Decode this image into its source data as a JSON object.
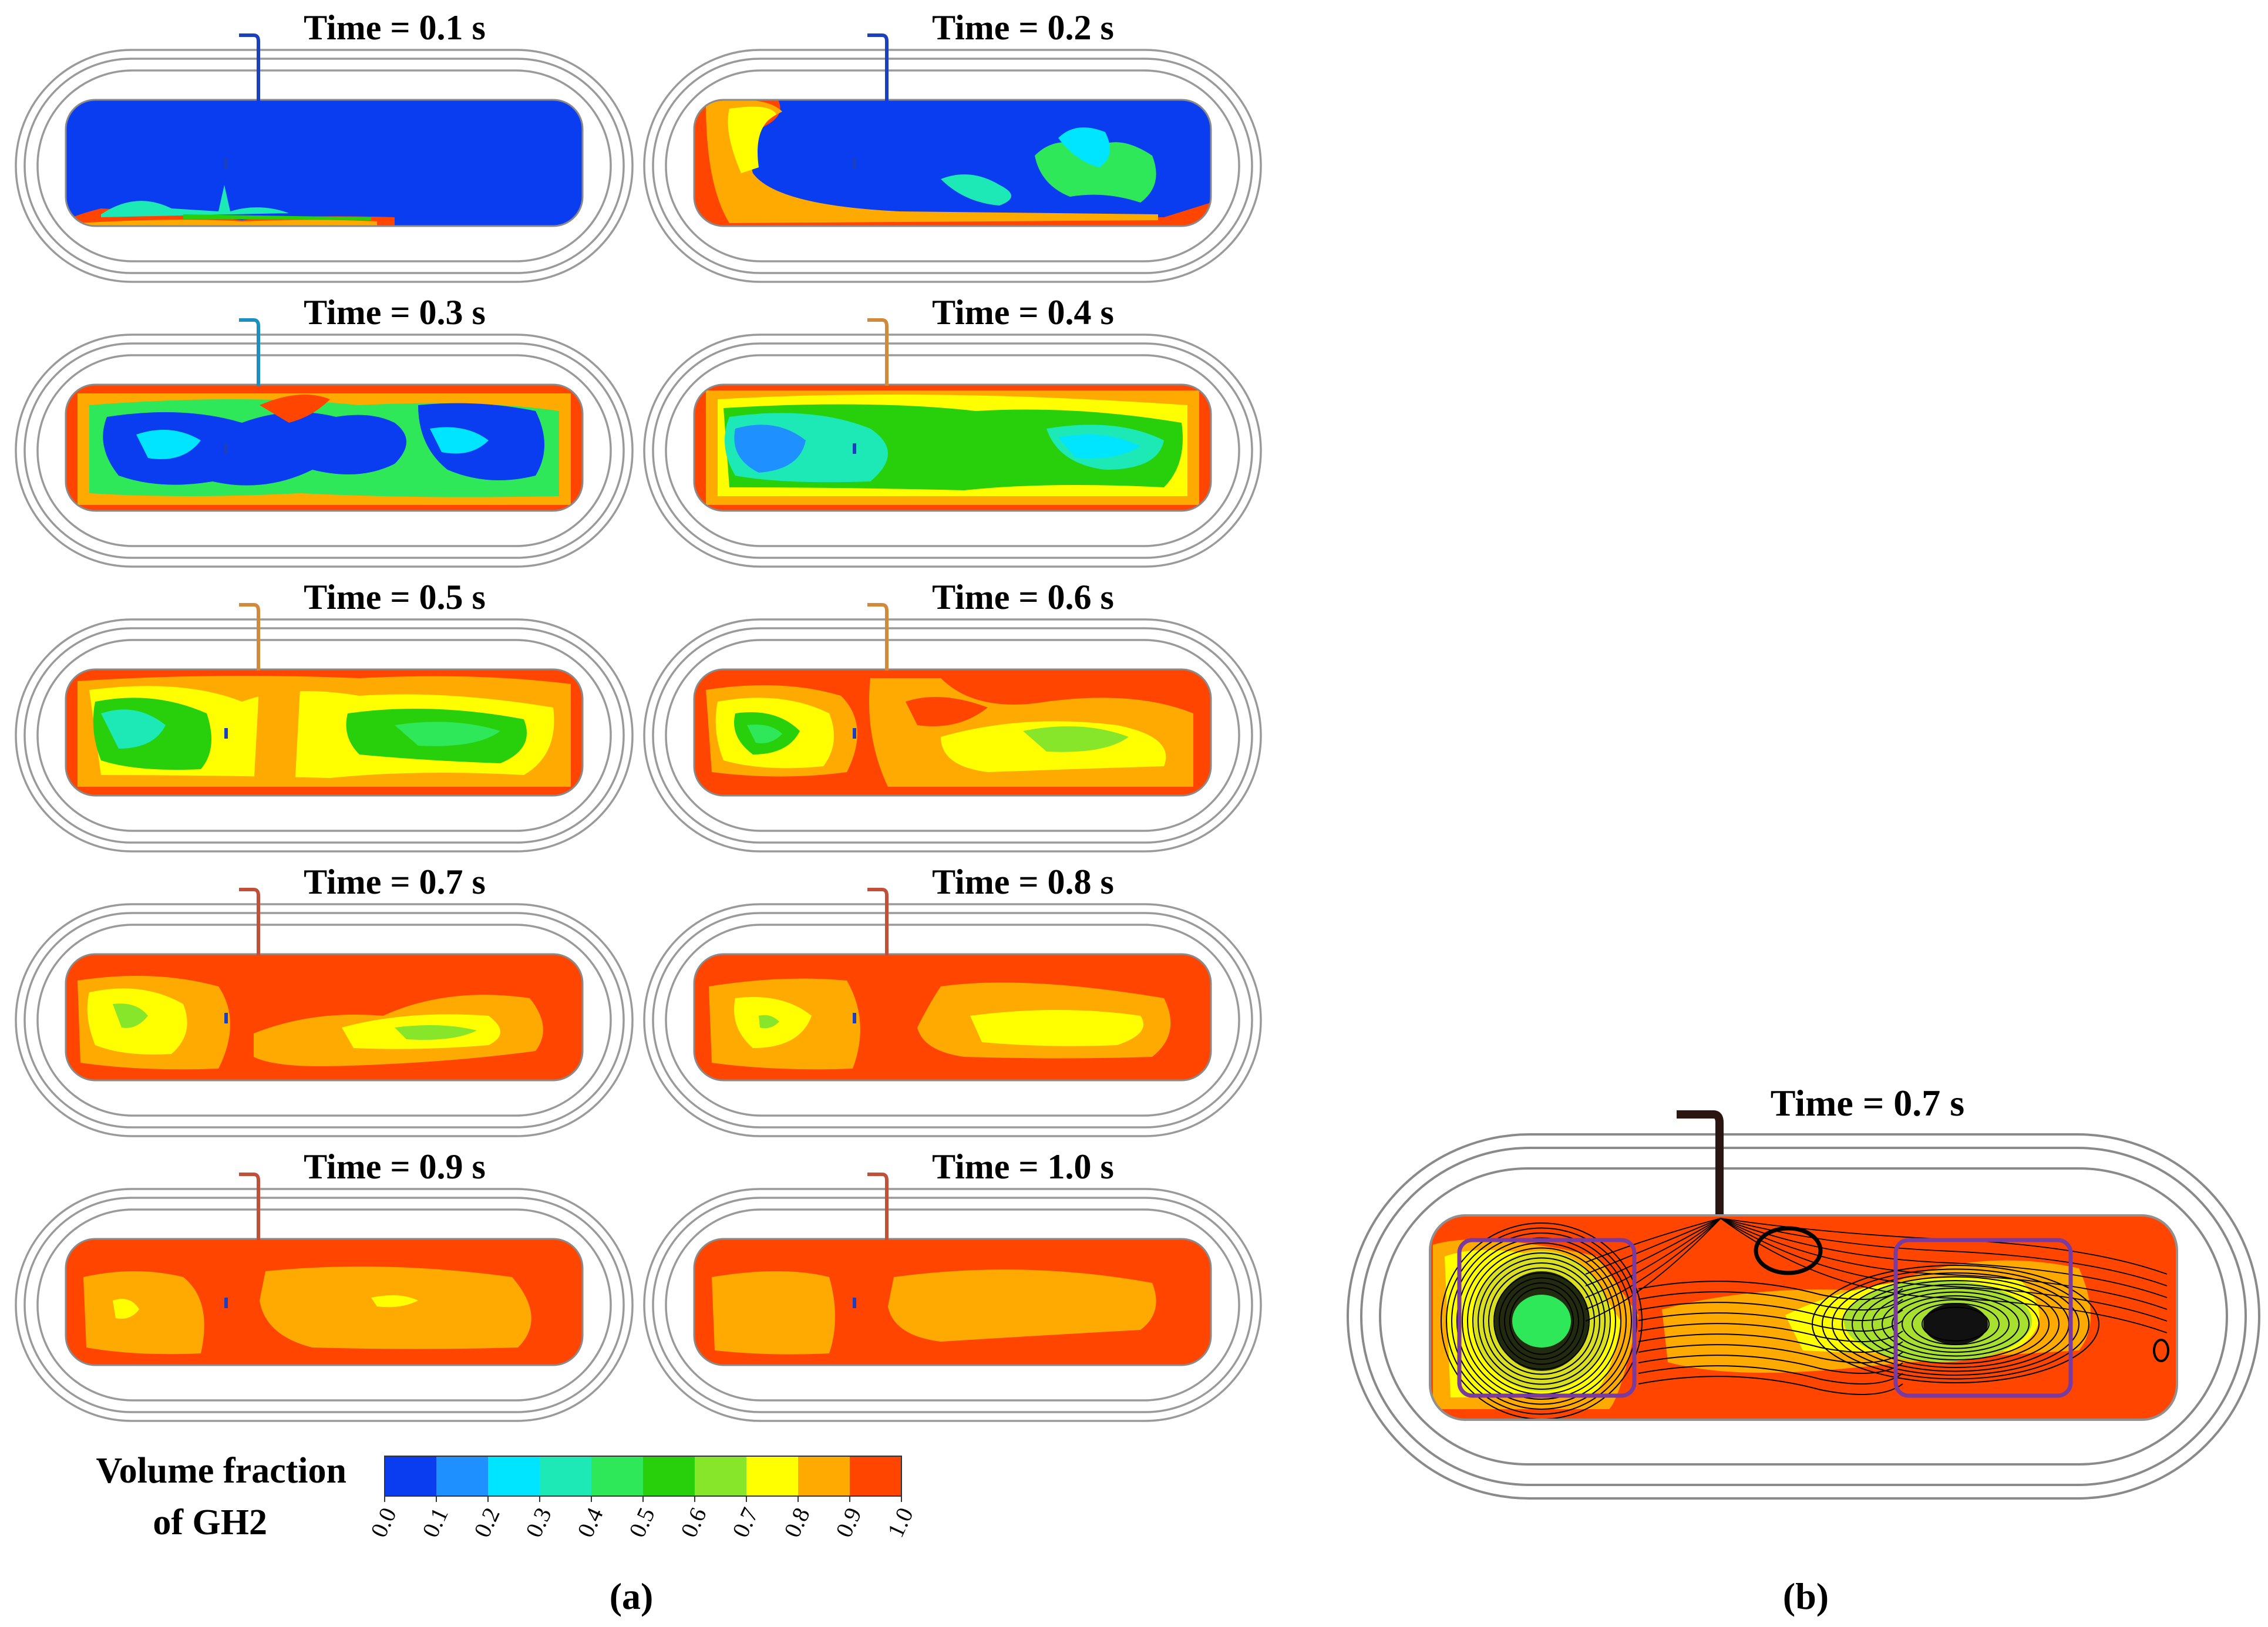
{
  "panel_a": {
    "label": "(a)",
    "frames": [
      {
        "time_label": "Time = 0.1 s",
        "pipe_color": "#1a3fbf"
      },
      {
        "time_label": "Time = 0.2 s",
        "pipe_color": "#1a3fbf"
      },
      {
        "time_label": "Time = 0.3 s",
        "pipe_color": "#1a8fc0"
      },
      {
        "time_label": "Time = 0.4 s",
        "pipe_color": "#d08a3a"
      },
      {
        "time_label": "Time = 0.5 s",
        "pipe_color": "#d08a3a"
      },
      {
        "time_label": "Time = 0.6 s",
        "pipe_color": "#d08a3a"
      },
      {
        "time_label": "Time = 0.7 s",
        "pipe_color": "#c0503a"
      },
      {
        "time_label": "Time = 0.8 s",
        "pipe_color": "#c0503a"
      },
      {
        "time_label": "Time = 0.9 s",
        "pipe_color": "#c0503a"
      },
      {
        "time_label": "Time = 1.0 s",
        "pipe_color": "#c0503a"
      }
    ]
  },
  "colorbar": {
    "title_line1": "Volume fraction",
    "title_line2": "of GH2",
    "ticks": [
      "0.0",
      "0.1",
      "0.2",
      "0.3",
      "0.4",
      "0.5",
      "0.6",
      "0.7",
      "0.8",
      "0.9",
      "1.0"
    ],
    "colors": [
      "#0a3cf0",
      "#1e90ff",
      "#00e5ff",
      "#1de9b6",
      "#2ee85a",
      "#27d00a",
      "#88e62a",
      "#ffff00",
      "#ffaa00",
      "#ff4500"
    ]
  },
  "panel_b": {
    "label": "(b)",
    "time_label": "Time = 0.7 s",
    "box_color": "#7a3ba0"
  }
}
